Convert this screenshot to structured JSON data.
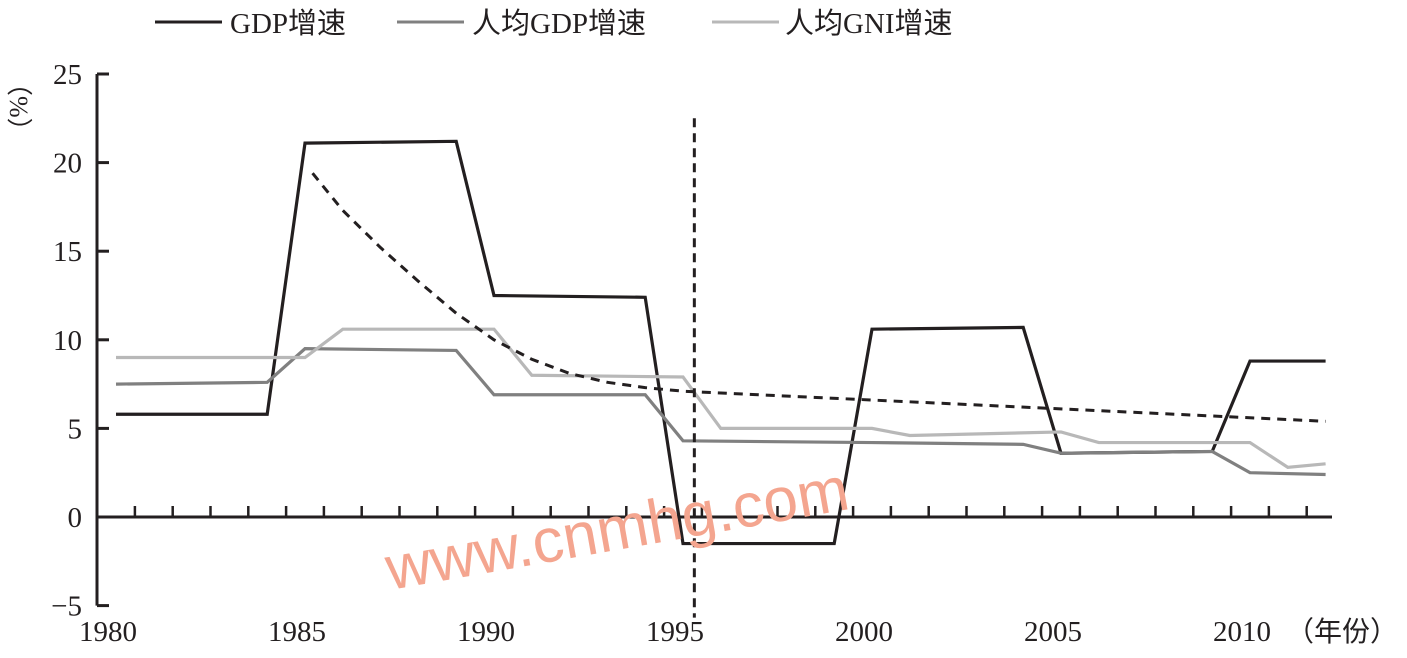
{
  "chart_data": {
    "type": "line",
    "title": "",
    "xlabel": "（年份）",
    "ylabel": "（%）",
    "xlim": [
      1980,
      2012
    ],
    "ylim": [
      -5,
      25
    ],
    "yticks": [
      -5,
      0,
      5,
      10,
      15,
      20,
      25
    ],
    "ytick_labels": [
      "−5",
      "0",
      "5",
      "10",
      "15",
      "20",
      "25"
    ],
    "xticks": [
      1980,
      1985,
      1990,
      1995,
      2000,
      2005,
      2010
    ],
    "xtick_labels": [
      "1980",
      "1985",
      "1990",
      "1995",
      "2000",
      "2005",
      "2010"
    ],
    "grid": false,
    "legend_position": "top",
    "series": [
      {
        "name": "GDP增速",
        "color": "#231f20",
        "x": [
          1980,
          1984,
          1985,
          1989,
          1990,
          1994,
          1995,
          1999,
          2000,
          2004,
          2005,
          2009,
          2010,
          2012
        ],
        "y": [
          5.8,
          5.8,
          21.1,
          21.2,
          12.5,
          12.4,
          -1.5,
          -1.5,
          10.6,
          10.7,
          3.6,
          3.7,
          8.8,
          8.8
        ]
      },
      {
        "name": "人均GDP增速",
        "color": "#808080",
        "x": [
          1980,
          1984,
          1985,
          1989,
          1990,
          1994,
          1995,
          2000,
          2004,
          2005,
          2009,
          2010,
          2012
        ],
        "y": [
          7.5,
          7.6,
          9.5,
          9.4,
          6.9,
          6.9,
          4.3,
          4.2,
          4.1,
          3.6,
          3.7,
          2.5,
          2.4
        ]
      },
      {
        "name": "人均GNI增速",
        "color": "#b8b8b8",
        "x": [
          1980,
          1985,
          1986,
          1990,
          1991,
          1995,
          1996,
          2000,
          2001,
          2005,
          2006,
          2010,
          2011,
          2012
        ],
        "y": [
          9.0,
          9.0,
          10.6,
          10.6,
          8.0,
          7.9,
          5.0,
          5.0,
          4.6,
          4.8,
          4.2,
          4.2,
          2.8,
          3.0
        ]
      }
    ],
    "trend_curve": {
      "style": "dashed",
      "x": [
        1985.2,
        1986,
        1987,
        1988,
        1989,
        1990,
        1991,
        1992,
        1993,
        1994,
        1995,
        1997,
        2000,
        2003,
        2006,
        2009,
        2012
      ],
      "y": [
        19.4,
        17.3,
        15.2,
        13.3,
        11.5,
        10.0,
        8.9,
        8.1,
        7.6,
        7.3,
        7.1,
        6.9,
        6.6,
        6.3,
        6.0,
        5.7,
        5.4
      ]
    },
    "reference_line": {
      "style": "dashed",
      "x": 1995.3,
      "y_top": 22.5
    },
    "watermark": "www.cnmhg.com"
  }
}
